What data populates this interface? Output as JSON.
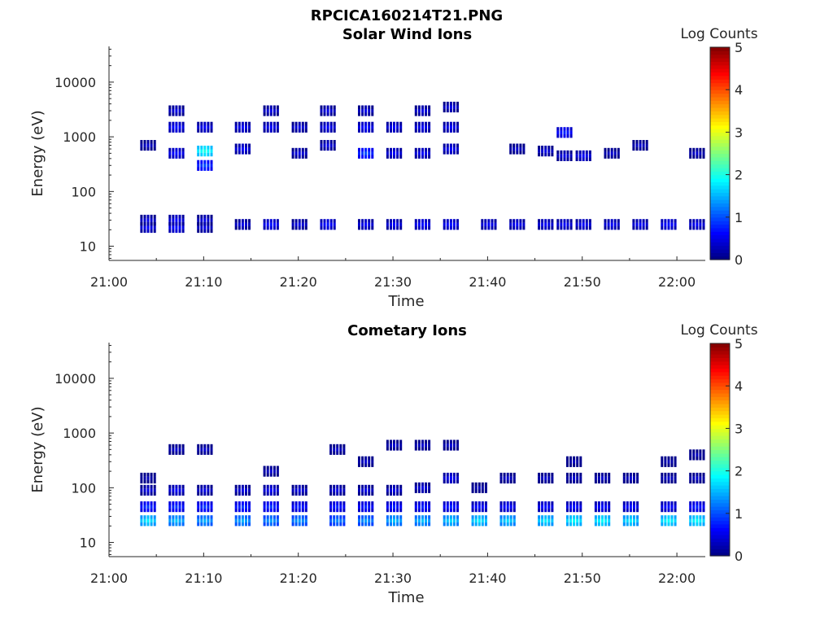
{
  "figure_title": "RPCICA160214T21.PNG",
  "chart_data": [
    {
      "type": "heatmap",
      "title": "Solar Wind Ions",
      "xlabel": "Time",
      "ylabel": "Energy (eV)",
      "y_scale": "log",
      "ylim": [
        5.5,
        45000
      ],
      "xlim": [
        "21:00",
        "22:03"
      ],
      "x_ticks": [
        "21:00",
        "21:10",
        "21:20",
        "21:30",
        "21:40",
        "21:50",
        "22:00"
      ],
      "y_ticks": [
        "10",
        "100",
        "1000",
        "10000"
      ],
      "colorbar": {
        "label": "Log Counts",
        "range": [
          0,
          5
        ],
        "ticks": [
          "0",
          "1",
          "2",
          "3",
          "4",
          "5"
        ],
        "colormap": "jet"
      },
      "bursts": [
        {
          "t": "21:04",
          "counts": [
            [
              22,
              0.6
            ],
            [
              30,
              0.5
            ],
            [
              700,
              0.4
            ]
          ]
        },
        {
          "t": "21:07",
          "counts": [
            [
              22,
              0.7
            ],
            [
              30,
              0.6
            ],
            [
              1500,
              0.7
            ],
            [
              3000,
              0.5
            ],
            [
              500,
              0.7
            ]
          ]
        },
        {
          "t": "21:10",
          "counts": [
            [
              22,
              0.5
            ],
            [
              30,
              0.5
            ],
            [
              550,
              2.0
            ],
            [
              300,
              1.0
            ],
            [
              1500,
              0.6
            ]
          ]
        },
        {
          "t": "21:14",
          "counts": [
            [
              25,
              0.5
            ],
            [
              1500,
              0.6
            ],
            [
              600,
              0.6
            ]
          ]
        },
        {
          "t": "21:17",
          "counts": [
            [
              25,
              0.7
            ],
            [
              1500,
              0.6
            ],
            [
              3000,
              0.5
            ]
          ]
        },
        {
          "t": "21:20",
          "counts": [
            [
              25,
              0.5
            ],
            [
              1500,
              0.5
            ],
            [
              500,
              0.5
            ]
          ]
        },
        {
          "t": "21:23",
          "counts": [
            [
              25,
              0.7
            ],
            [
              1500,
              0.6
            ],
            [
              3000,
              0.5
            ],
            [
              700,
              0.5
            ]
          ]
        },
        {
          "t": "21:27",
          "counts": [
            [
              25,
              0.6
            ],
            [
              1500,
              0.7
            ],
            [
              3000,
              0.5
            ],
            [
              500,
              1.0
            ]
          ]
        },
        {
          "t": "21:30",
          "counts": [
            [
              25,
              0.6
            ],
            [
              1500,
              0.6
            ],
            [
              500,
              0.6
            ]
          ]
        },
        {
          "t": "21:33",
          "counts": [
            [
              25,
              0.7
            ],
            [
              1500,
              0.6
            ],
            [
              3000,
              0.5
            ],
            [
              500,
              0.6
            ]
          ]
        },
        {
          "t": "21:36",
          "counts": [
            [
              25,
              0.7
            ],
            [
              1500,
              0.6
            ],
            [
              3500,
              0.5
            ],
            [
              600,
              0.6
            ]
          ]
        },
        {
          "t": "21:40",
          "counts": [
            [
              25,
              0.6
            ]
          ]
        },
        {
          "t": "21:43",
          "counts": [
            [
              25,
              0.6
            ],
            [
              600,
              0.4
            ]
          ]
        },
        {
          "t": "21:46",
          "counts": [
            [
              25,
              0.6
            ],
            [
              550,
              0.5
            ]
          ]
        },
        {
          "t": "21:48",
          "counts": [
            [
              25,
              0.6
            ],
            [
              1200,
              0.8
            ],
            [
              450,
              0.5
            ]
          ]
        },
        {
          "t": "21:50",
          "counts": [
            [
              25,
              0.6
            ],
            [
              450,
              0.6
            ]
          ]
        },
        {
          "t": "21:53",
          "counts": [
            [
              25,
              0.6
            ],
            [
              500,
              0.4
            ]
          ]
        },
        {
          "t": "21:56",
          "counts": [
            [
              25,
              0.6
            ],
            [
              700,
              0.4
            ]
          ]
        },
        {
          "t": "21:59",
          "counts": [
            [
              25,
              0.7
            ]
          ]
        },
        {
          "t": "22:02",
          "counts": [
            [
              25,
              0.6
            ],
            [
              500,
              0.4
            ]
          ]
        }
      ]
    },
    {
      "type": "heatmap",
      "title": "Cometary Ions",
      "xlabel": "Time",
      "ylabel": "Energy (eV)",
      "y_scale": "log",
      "ylim": [
        5.5,
        45000
      ],
      "xlim": [
        "21:00",
        "22:03"
      ],
      "x_ticks": [
        "21:00",
        "21:10",
        "21:20",
        "21:30",
        "21:40",
        "21:50",
        "22:00"
      ],
      "y_ticks": [
        "10",
        "100",
        "1000",
        "10000"
      ],
      "colorbar": {
        "label": "Log Counts",
        "range": [
          0,
          5
        ],
        "ticks": [
          "0",
          "1",
          "2",
          "3",
          "4",
          "5"
        ],
        "colormap": "jet"
      },
      "bursts": [
        {
          "t": "21:04",
          "counts": [
            [
              25,
              1.8
            ],
            [
              45,
              0.9
            ],
            [
              90,
              0.5
            ],
            [
              150,
              0.3
            ]
          ]
        },
        {
          "t": "21:07",
          "counts": [
            [
              25,
              1.6
            ],
            [
              45,
              0.9
            ],
            [
              90,
              0.6
            ],
            [
              500,
              0.4
            ]
          ]
        },
        {
          "t": "21:10",
          "counts": [
            [
              25,
              1.5
            ],
            [
              45,
              0.9
            ],
            [
              90,
              0.5
            ],
            [
              500,
              0.4
            ]
          ]
        },
        {
          "t": "21:14",
          "counts": [
            [
              25,
              1.5
            ],
            [
              45,
              0.9
            ],
            [
              90,
              0.5
            ]
          ]
        },
        {
          "t": "21:17",
          "counts": [
            [
              25,
              1.4
            ],
            [
              45,
              0.9
            ],
            [
              90,
              0.6
            ],
            [
              200,
              0.4
            ]
          ]
        },
        {
          "t": "21:20",
          "counts": [
            [
              25,
              1.4
            ],
            [
              45,
              0.8
            ],
            [
              90,
              0.5
            ]
          ]
        },
        {
          "t": "21:24",
          "counts": [
            [
              25,
              1.3
            ],
            [
              45,
              0.8
            ],
            [
              90,
              0.5
            ],
            [
              500,
              0.4
            ]
          ]
        },
        {
          "t": "21:27",
          "counts": [
            [
              25,
              1.4
            ],
            [
              45,
              0.8
            ],
            [
              90,
              0.5
            ],
            [
              300,
              0.4
            ]
          ]
        },
        {
          "t": "21:30",
          "counts": [
            [
              25,
              1.6
            ],
            [
              45,
              0.8
            ],
            [
              90,
              0.5
            ],
            [
              600,
              0.4
            ]
          ]
        },
        {
          "t": "21:33",
          "counts": [
            [
              25,
              1.6
            ],
            [
              45,
              0.8
            ],
            [
              100,
              0.5
            ],
            [
              600,
              0.4
            ]
          ]
        },
        {
          "t": "21:36",
          "counts": [
            [
              25,
              1.7
            ],
            [
              45,
              0.8
            ],
            [
              150,
              0.6
            ],
            [
              600,
              0.4
            ]
          ]
        },
        {
          "t": "21:39",
          "counts": [
            [
              25,
              1.8
            ],
            [
              45,
              0.7
            ],
            [
              100,
              0.3
            ]
          ]
        },
        {
          "t": "21:42",
          "counts": [
            [
              25,
              1.7
            ],
            [
              45,
              0.7
            ],
            [
              150,
              0.4
            ]
          ]
        },
        {
          "t": "21:46",
          "counts": [
            [
              25,
              1.8
            ],
            [
              45,
              0.7
            ],
            [
              150,
              0.4
            ]
          ]
        },
        {
          "t": "21:49",
          "counts": [
            [
              25,
              1.9
            ],
            [
              45,
              0.7
            ],
            [
              150,
              0.4
            ],
            [
              300,
              0.3
            ]
          ]
        },
        {
          "t": "21:52",
          "counts": [
            [
              25,
              1.9
            ],
            [
              45,
              0.7
            ],
            [
              150,
              0.4
            ]
          ]
        },
        {
          "t": "21:55",
          "counts": [
            [
              25,
              1.8
            ],
            [
              45,
              0.7
            ],
            [
              150,
              0.4
            ]
          ]
        },
        {
          "t": "21:59",
          "counts": [
            [
              25,
              1.9
            ],
            [
              45,
              0.7
            ],
            [
              150,
              0.4
            ],
            [
              300,
              0.3
            ]
          ]
        },
        {
          "t": "22:02",
          "counts": [
            [
              25,
              1.9
            ],
            [
              45,
              0.8
            ],
            [
              150,
              0.4
            ],
            [
              400,
              0.3
            ]
          ]
        }
      ]
    }
  ]
}
